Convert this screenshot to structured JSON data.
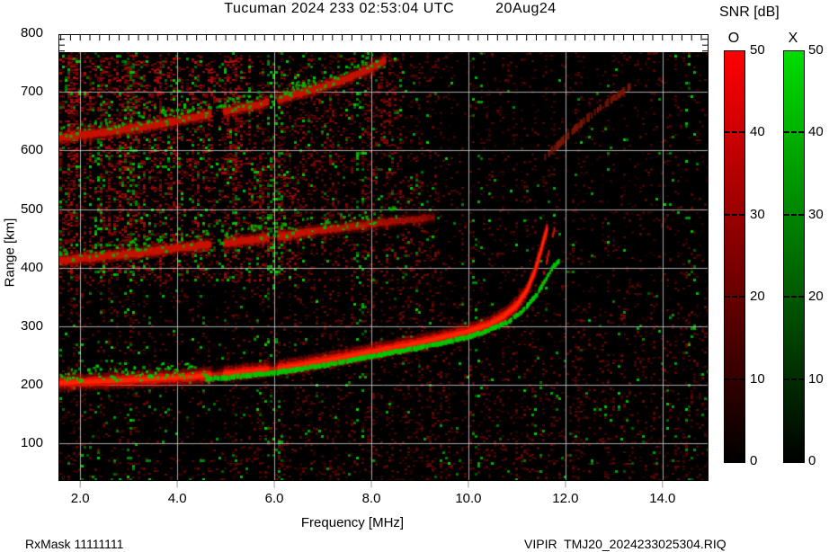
{
  "title": {
    "station_datetime": "Tucuman 2024 233 02:53:04 UTC",
    "date": "20Aug24"
  },
  "footer": {
    "rx_mask": "RxMask 11111111",
    "file_id": "VIPIR  TMJ20_2024233025304.RIQ"
  },
  "colorbar": {
    "title": "SNR [dB]",
    "bars": [
      {
        "label": "O",
        "gradient_top": "#ff0000",
        "gradient_bottom": "#000000"
      },
      {
        "label": "X",
        "gradient_top": "#00dd00",
        "gradient_bottom": "#000000"
      }
    ],
    "ticks": [
      {
        "v": 50,
        "label": "50"
      },
      {
        "v": 40,
        "label": "40"
      },
      {
        "v": 30,
        "label": "30"
      },
      {
        "v": 20,
        "label": "20"
      },
      {
        "v": 10,
        "label": "10"
      },
      {
        "v": 0,
        "label": "0"
      }
    ],
    "min": 0,
    "max": 50
  },
  "chart_data": {
    "type": "heatmap",
    "title": "Tucuman 2024 233 02:53:04 UTC 20Aug24",
    "xlabel": "Frequency [MHz]",
    "ylabel": "Range [km]",
    "xlim": [
      1.57,
      14.93
    ],
    "ylim": [
      37,
      768
    ],
    "background": "#000000",
    "grid": true,
    "grid_color": "#d2d2d2",
    "x_ticks": [
      {
        "v": 2,
        "label": "2.0"
      },
      {
        "v": 4,
        "label": "4.0"
      },
      {
        "v": 6,
        "label": "6.0"
      },
      {
        "v": 8,
        "label": "8.0"
      },
      {
        "v": 10,
        "label": "10.0"
      },
      {
        "v": 12,
        "label": "12.0"
      },
      {
        "v": 14,
        "label": "14.0"
      }
    ],
    "y_ticks": [
      {
        "v": 800,
        "label": "800"
      },
      {
        "v": 700,
        "label": "700"
      },
      {
        "v": 600,
        "label": "600"
      },
      {
        "v": 500,
        "label": "500"
      },
      {
        "v": 400,
        "label": "400"
      },
      {
        "v": 300,
        "label": "300"
      },
      {
        "v": 200,
        "label": "200"
      },
      {
        "v": 100,
        "label": "100"
      }
    ],
    "snr_scale": {
      "min": 0,
      "max": 50,
      "o_mode_color": "#ff0000",
      "x_mode_color": "#00dd00"
    },
    "interference_gaps_mhz": [
      [
        4.7,
        4.95
      ],
      [
        5.88,
        6.08
      ]
    ],
    "series": [
      {
        "name": "F-echo 2nd hop O-mode",
        "color": "#c81400",
        "thickness": 7,
        "fade_from": 6.0,
        "use_gaps": true,
        "points": [
          [
            1.57,
            412
          ],
          [
            2,
            415
          ],
          [
            2.5,
            419
          ],
          [
            3,
            423
          ],
          [
            3.5,
            428
          ],
          [
            4,
            433
          ],
          [
            4.5,
            438
          ],
          [
            5,
            442
          ],
          [
            5.5,
            447
          ],
          [
            6,
            452
          ],
          [
            6.5,
            458
          ],
          [
            7,
            464
          ],
          [
            7.5,
            469
          ],
          [
            8,
            474
          ],
          [
            8.5,
            479
          ],
          [
            9,
            483
          ],
          [
            9.3,
            486
          ]
        ]
      },
      {
        "name": "F-echo 2nd hop X-mode scatter",
        "color": "#00bb00",
        "style": "speckle",
        "p": 0.3,
        "jitter_km": 14,
        "points": [
          [
            1.57,
            422
          ],
          [
            2,
            425
          ],
          [
            3,
            433
          ],
          [
            4,
            443
          ],
          [
            5,
            452
          ],
          [
            6,
            462
          ],
          [
            7,
            474
          ],
          [
            8,
            484
          ],
          [
            8.6,
            490
          ]
        ]
      },
      {
        "name": "F-echo 3rd hop O-mode",
        "color": "#c81400",
        "thickness": 7,
        "use_gaps": true,
        "points": [
          [
            1.57,
            622
          ],
          [
            2,
            626
          ],
          [
            2.5,
            631
          ],
          [
            3,
            637
          ],
          [
            3.5,
            643
          ],
          [
            4,
            651
          ],
          [
            4.5,
            659
          ],
          [
            5,
            667
          ],
          [
            5.5,
            675
          ],
          [
            6,
            685
          ],
          [
            6.5,
            697
          ],
          [
            7,
            709
          ],
          [
            7.5,
            723
          ],
          [
            8,
            741
          ],
          [
            8.3,
            754
          ]
        ]
      },
      {
        "name": "F-echo 3rd hop X-mode scatter",
        "color": "#00bb00",
        "style": "speckle",
        "p": 0.35,
        "jitter_km": 12,
        "points": [
          [
            1.57,
            630
          ],
          [
            2,
            634
          ],
          [
            3,
            645
          ],
          [
            4,
            658
          ],
          [
            5,
            674
          ],
          [
            6,
            692
          ],
          [
            7,
            716
          ],
          [
            8,
            748
          ],
          [
            8.3,
            760
          ]
        ]
      },
      {
        "name": "faint oblique echo",
        "color": "#7a1606",
        "style": "dots",
        "p": 0.5,
        "thickness": 8,
        "points": [
          [
            11.55,
            585
          ],
          [
            12.1,
            630
          ],
          [
            12.7,
            672
          ],
          [
            13.35,
            710
          ]
        ]
      },
      {
        "name": "F-echo 1st hop O-mode",
        "color": "#e01000",
        "thickness": 9,
        "use_gaps": true,
        "gap_mode": "dim",
        "core": "#ff2600",
        "points": [
          [
            1.57,
            203
          ],
          [
            2,
            205
          ],
          [
            2.5,
            206
          ],
          [
            3,
            208
          ],
          [
            3.5,
            210
          ],
          [
            4,
            212
          ],
          [
            4.5,
            215
          ],
          [
            5,
            219
          ],
          [
            5.5,
            223
          ],
          [
            6,
            227
          ],
          [
            6.5,
            233
          ],
          [
            7,
            240
          ],
          [
            7.5,
            248
          ],
          [
            8,
            256
          ],
          [
            8.5,
            264
          ],
          [
            9,
            272
          ],
          [
            9.5,
            281
          ],
          [
            10,
            291
          ],
          [
            10.4,
            302
          ],
          [
            10.7,
            315
          ],
          [
            11,
            336
          ],
          [
            11.2,
            360
          ],
          [
            11.35,
            390
          ],
          [
            11.45,
            416
          ],
          [
            11.55,
            446
          ],
          [
            11.62,
            466
          ]
        ]
      },
      {
        "name": "F-echo 1st hop O-mode spread branch",
        "color": "#c81400",
        "style": "dots",
        "p": 0.55,
        "thickness": 5,
        "points": [
          [
            11.5,
            370
          ],
          [
            11.6,
            405
          ],
          [
            11.7,
            442
          ],
          [
            11.78,
            468
          ]
        ]
      },
      {
        "name": "F-echo 1st hop X-mode low-freq scatter",
        "color": "#00c800",
        "style": "speckle",
        "p": 0.5,
        "jitter_km": 13,
        "points": [
          [
            1.57,
            213
          ],
          [
            2,
            215
          ],
          [
            3,
            218
          ],
          [
            4,
            222
          ],
          [
            4.6,
            225
          ]
        ]
      },
      {
        "name": "F-echo 1st hop X-mode",
        "color": "#00c800",
        "thickness": 5,
        "style": "patchy",
        "p": 0.8,
        "points": [
          [
            4.6,
            209
          ],
          [
            5,
            212
          ],
          [
            5.5,
            216
          ],
          [
            6,
            220
          ],
          [
            6.5,
            226
          ],
          [
            7,
            233
          ],
          [
            7.5,
            240
          ],
          [
            8,
            248
          ],
          [
            8.5,
            256
          ],
          [
            9,
            263
          ],
          [
            9.5,
            272
          ],
          [
            10,
            281
          ],
          [
            10.4,
            292
          ],
          [
            10.8,
            306
          ],
          [
            11.1,
            325
          ],
          [
            11.4,
            352
          ],
          [
            11.6,
            380
          ],
          [
            11.75,
            402
          ],
          [
            11.88,
            412
          ]
        ]
      }
    ],
    "noise": {
      "seed": 987654321,
      "cell": 3,
      "base": {
        "red_p": 0.15,
        "green_p": 0.012,
        "bright": 100
      },
      "regions": [
        {
          "f": [
            1.57,
            14.93
          ],
          "km": [
            37,
            190
          ],
          "red_p": 0.18,
          "green_p": 0.018,
          "bright": 95
        },
        {
          "f": [
            1.57,
            6.5
          ],
          "km": [
            380,
            565
          ],
          "red_p": 0.42,
          "green_p": 0.05,
          "bright": 150
        },
        {
          "f": [
            6.5,
            9.4
          ],
          "km": [
            380,
            565
          ],
          "red_p": 0.22,
          "green_p": 0.03,
          "bright": 120
        },
        {
          "f": [
            1.57,
            5.5
          ],
          "km": [
            565,
            768
          ],
          "red_p": 0.5,
          "green_p": 0.055,
          "bright": 165
        },
        {
          "f": [
            5.5,
            8.6
          ],
          "km": [
            565,
            768
          ],
          "red_p": 0.28,
          "green_p": 0.035,
          "bright": 130
        },
        {
          "f": [
            9.4,
            14.93
          ],
          "km": [
            340,
            768
          ],
          "red_p": 0.1,
          "green_p": 0.01,
          "bright": 85
        }
      ],
      "green_columns_mhz": [
        2.35,
        3.05,
        5.95,
        6.05,
        7.75,
        10.15,
        14.55
      ],
      "notch_mhz": [
        4.7,
        4.95
      ]
    }
  }
}
